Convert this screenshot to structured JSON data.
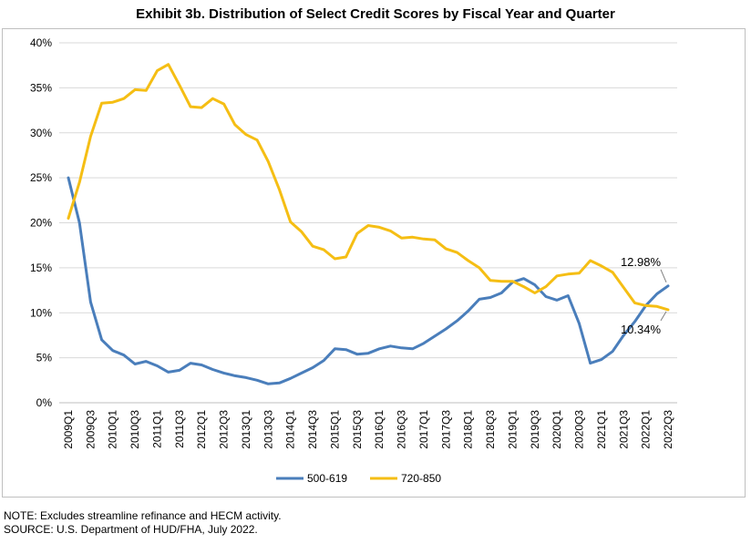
{
  "chart_data": {
    "type": "line",
    "title": "Exhibit 3b. Distribution of Select Credit Scores by Fiscal Year and Quarter",
    "xlabel": "",
    "ylabel": "",
    "ylim": [
      0,
      40
    ],
    "yticks": [
      "0%",
      "5%",
      "10%",
      "15%",
      "20%",
      "25%",
      "30%",
      "35%",
      "40%"
    ],
    "yticks_values": [
      0,
      5,
      10,
      15,
      20,
      25,
      30,
      35,
      40
    ],
    "grid": true,
    "legend": "bottom-center",
    "x": [
      "2009Q1",
      "2009Q2",
      "2009Q3",
      "2009Q4",
      "2010Q1",
      "2010Q2",
      "2010Q3",
      "2010Q4",
      "2011Q1",
      "2011Q2",
      "2011Q3",
      "2011Q4",
      "2012Q1",
      "2012Q2",
      "2012Q3",
      "2012Q4",
      "2013Q1",
      "2013Q2",
      "2013Q3",
      "2013Q4",
      "2014Q1",
      "2014Q2",
      "2014Q3",
      "2014Q4",
      "2015Q1",
      "2015Q2",
      "2015Q3",
      "2015Q4",
      "2016Q1",
      "2016Q2",
      "2016Q3",
      "2016Q4",
      "2017Q1",
      "2017Q2",
      "2017Q3",
      "2017Q4",
      "2018Q1",
      "2018Q2",
      "2018Q3",
      "2018Q4",
      "2019Q1",
      "2019Q2",
      "2019Q3",
      "2019Q4",
      "2020Q1",
      "2020Q2",
      "2020Q3",
      "2020Q4",
      "2021Q1",
      "2021Q2",
      "2021Q3",
      "2021Q4",
      "2022Q1",
      "2022Q2",
      "2022Q3"
    ],
    "x_tick_labels": [
      "2009Q1",
      "2009Q3",
      "2010Q1",
      "2010Q3",
      "2011Q1",
      "2011Q3",
      "2012Q1",
      "2012Q3",
      "2013Q1",
      "2013Q3",
      "2014Q1",
      "2014Q3",
      "2015Q1",
      "2015Q3",
      "2016Q1",
      "2016Q3",
      "2017Q1",
      "2017Q3",
      "2018Q1",
      "2018Q3",
      "2019Q1",
      "2019Q3",
      "2020Q1",
      "2020Q3",
      "2021Q1",
      "2021Q3",
      "2022Q1",
      "2022Q3"
    ],
    "series": [
      {
        "name": "500-619",
        "color": "#4a7ebb",
        "values": [
          25.0,
          20.0,
          11.2,
          7.0,
          5.8,
          5.3,
          4.3,
          4.6,
          4.1,
          3.4,
          3.6,
          4.4,
          4.2,
          3.7,
          3.3,
          3.0,
          2.8,
          2.5,
          2.1,
          2.2,
          2.7,
          3.3,
          3.9,
          4.7,
          6.0,
          5.9,
          5.4,
          5.5,
          6.0,
          6.3,
          6.1,
          6.0,
          6.6,
          7.4,
          8.2,
          9.1,
          10.2,
          11.5,
          11.7,
          12.2,
          13.4,
          13.8,
          13.1,
          11.8,
          11.4,
          11.9,
          8.8,
          4.4,
          4.8,
          5.7,
          7.5,
          9.0,
          10.8,
          12.1,
          12.98
        ],
        "end_label": "12.98%"
      },
      {
        "name": "720-850",
        "color": "#f5be14",
        "values": [
          20.5,
          24.5,
          29.6,
          33.3,
          33.4,
          33.8,
          34.8,
          34.7,
          36.9,
          37.6,
          35.3,
          32.9,
          32.8,
          33.8,
          33.2,
          30.9,
          29.8,
          29.2,
          26.8,
          23.7,
          20.1,
          19.0,
          17.4,
          17.0,
          16.0,
          16.2,
          18.8,
          19.7,
          19.5,
          19.1,
          18.3,
          18.4,
          18.2,
          18.1,
          17.1,
          16.7,
          15.8,
          15.0,
          13.6,
          13.5,
          13.5,
          12.9,
          12.2,
          12.9,
          14.1,
          14.3,
          14.4,
          15.8,
          15.2,
          14.5,
          12.8,
          11.1,
          10.8,
          10.7,
          10.34
        ],
        "end_label": "10.34%"
      }
    ]
  },
  "notes": {
    "note": "NOTE: Excludes streamline refinance and HECM activity.",
    "source": "SOURCE: U.S. Department of HUD/FHA, July 2022."
  }
}
